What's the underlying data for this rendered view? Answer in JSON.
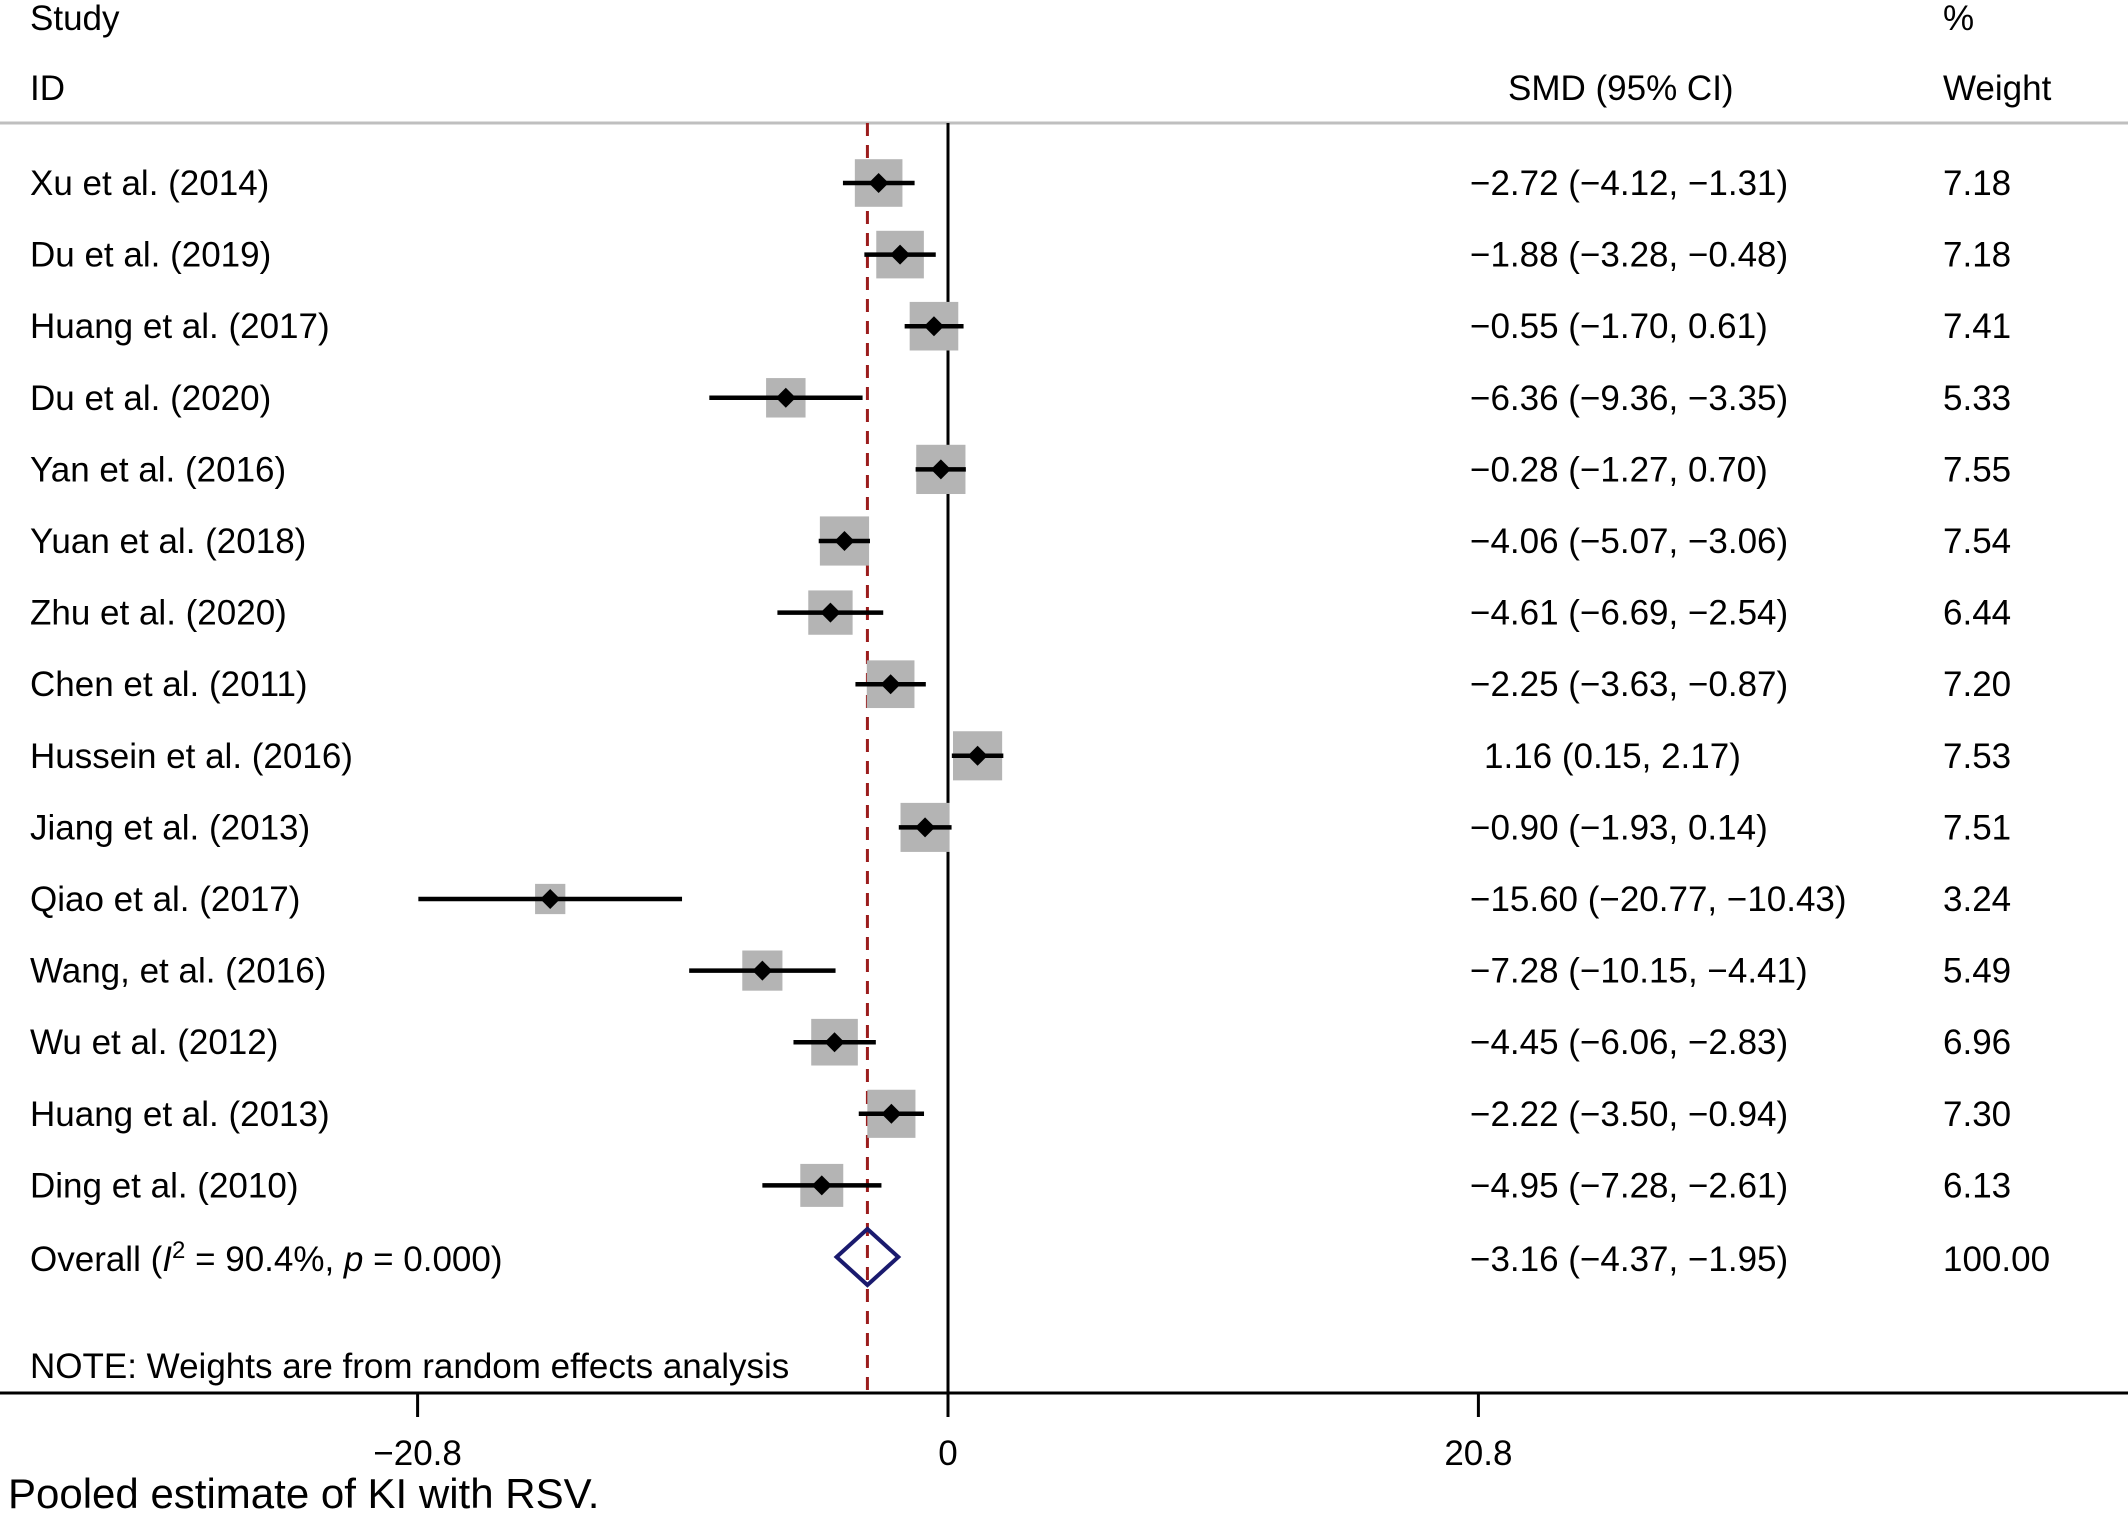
{
  "chart_data": {
    "type": "forest",
    "headers": {
      "study_line1": "Study",
      "study_line2": "ID",
      "effect": "SMD (95% CI)",
      "weight_line1": "%",
      "weight_line2": "Weight"
    },
    "x_axis": {
      "xlim": [
        -31.7,
        31.7
      ],
      "ticks": [
        {
          "value": -20.8,
          "label": "−20.8"
        },
        {
          "value": 0,
          "label": "0"
        },
        {
          "value": 20.8,
          "label": "20.8"
        }
      ],
      "null_line": 0
    },
    "studies": [
      {
        "label": "Xu et al. (2014)",
        "smd": -2.72,
        "lower": -4.12,
        "upper": -1.31,
        "ci_text": "−2.72 (−4.12, −1.31)",
        "weight": 7.18,
        "weight_text": "7.18"
      },
      {
        "label": "Du et al. (2019)",
        "smd": -1.88,
        "lower": -3.28,
        "upper": -0.48,
        "ci_text": "−1.88 (−3.28, −0.48)",
        "weight": 7.18,
        "weight_text": "7.18"
      },
      {
        "label": "Huang et al. (2017)",
        "smd": -0.55,
        "lower": -1.7,
        "upper": 0.61,
        "ci_text": "−0.55 (−1.70, 0.61)",
        "weight": 7.41,
        "weight_text": "7.41"
      },
      {
        "label": "Du et al. (2020)",
        "smd": -6.36,
        "lower": -9.36,
        "upper": -3.35,
        "ci_text": "−6.36 (−9.36, −3.35)",
        "weight": 5.33,
        "weight_text": "5.33"
      },
      {
        "label": "Yan et al. (2016)",
        "smd": -0.28,
        "lower": -1.27,
        "upper": 0.7,
        "ci_text": "−0.28 (−1.27, 0.70)",
        "weight": 7.55,
        "weight_text": "7.55"
      },
      {
        "label": "Yuan et al. (2018)",
        "smd": -4.06,
        "lower": -5.07,
        "upper": -3.06,
        "ci_text": "−4.06 (−5.07, −3.06)",
        "weight": 7.54,
        "weight_text": "7.54"
      },
      {
        "label": "Zhu et al. (2020)",
        "smd": -4.61,
        "lower": -6.69,
        "upper": -2.54,
        "ci_text": "−4.61 (−6.69, −2.54)",
        "weight": 6.44,
        "weight_text": "6.44"
      },
      {
        "label": "Chen et al. (2011)",
        "smd": -2.25,
        "lower": -3.63,
        "upper": -0.87,
        "ci_text": "−2.25 (−3.63, −0.87)",
        "weight": 7.2,
        "weight_text": "7.20"
      },
      {
        "label": "Hussein et al. (2016)",
        "smd": 1.16,
        "lower": 0.15,
        "upper": 2.17,
        "ci_text": "1.16 (0.15, 2.17)",
        "weight": 7.53,
        "weight_text": "7.53"
      },
      {
        "label": "Jiang et al. (2013)",
        "smd": -0.9,
        "lower": -1.93,
        "upper": 0.14,
        "ci_text": "−0.90 (−1.93, 0.14)",
        "weight": 7.51,
        "weight_text": "7.51"
      },
      {
        "label": "Qiao et al. (2017)",
        "smd": -15.6,
        "lower": -20.77,
        "upper": -10.43,
        "ci_text": "−15.60 (−20.77, −10.43)",
        "weight": 3.24,
        "weight_text": "3.24"
      },
      {
        "label": "Wang, et al. (2016)",
        "smd": -7.28,
        "lower": -10.15,
        "upper": -4.41,
        "ci_text": "−7.28 (−10.15, −4.41)",
        "weight": 5.49,
        "weight_text": "5.49"
      },
      {
        "label": "Wu et al. (2012)",
        "smd": -4.45,
        "lower": -6.06,
        "upper": -2.83,
        "ci_text": "−4.45 (−6.06, −2.83)",
        "weight": 6.96,
        "weight_text": "6.96"
      },
      {
        "label": "Huang et al. (2013)",
        "smd": -2.22,
        "lower": -3.5,
        "upper": -0.94,
        "ci_text": "−2.22 (−3.50, −0.94)",
        "weight": 7.3,
        "weight_text": "7.30"
      },
      {
        "label": "Ding et al. (2010)",
        "smd": -4.95,
        "lower": -7.28,
        "upper": -2.61,
        "ci_text": "−4.95 (−7.28, −2.61)",
        "weight": 6.13,
        "weight_text": "6.13"
      }
    ],
    "overall": {
      "label_prefix": "Overall  (",
      "label_i": "I",
      "label_sup": "2",
      "label_mid": " = 90.4%, ",
      "label_p": "p",
      "label_end": " = 0.000)",
      "smd": -3.16,
      "lower": -4.37,
      "upper": -1.95,
      "ci_text": "−3.16 (−4.37, −1.95)",
      "weight": 100.0,
      "weight_text": "100.00"
    },
    "note": "NOTE: Weights are from random effects analysis",
    "caption": "Pooled estimate of KI with RSV.",
    "colors": {
      "ci_line": "#000000",
      "weight_box": "#b4b4b4",
      "point": "#000000",
      "overall_diamond": "#1a1a6e",
      "pooled_line": "#9b1c1c",
      "null_line": "#000000",
      "rule": "#bfbfbf"
    }
  }
}
